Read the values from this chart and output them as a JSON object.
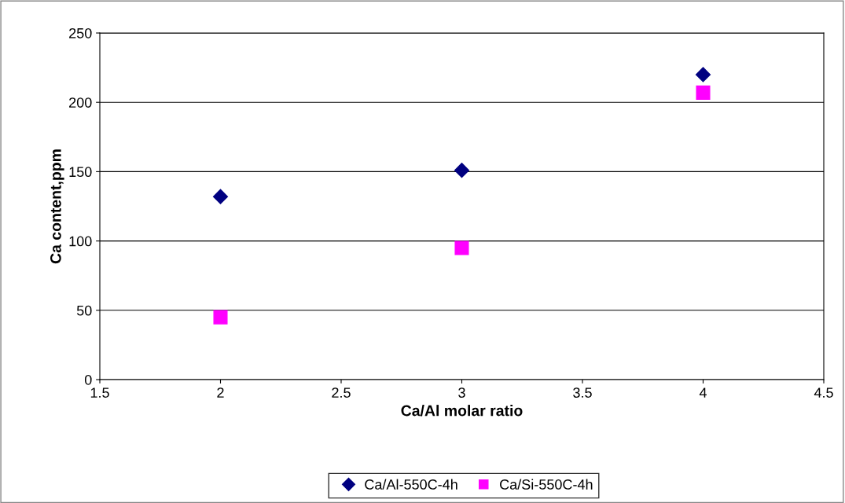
{
  "chart_data": {
    "type": "scatter",
    "xlabel": "Ca/Al molar ratio",
    "ylabel": "Ca content,ppm",
    "x": [
      2,
      3,
      4
    ],
    "series": [
      {
        "name": "Ca/Al-550C-4h",
        "color": "#000080",
        "marker": "diamond",
        "values": [
          132,
          151,
          220
        ]
      },
      {
        "name": "Ca/Si-550C-4h",
        "color": "#ff00ff",
        "marker": "square",
        "values": [
          45,
          95,
          207
        ]
      }
    ],
    "xlim": [
      1.5,
      4.5
    ],
    "xticks": [
      1.5,
      2,
      2.5,
      3,
      3.5,
      4,
      4.5
    ],
    "ylim": [
      0,
      250
    ],
    "yticks": [
      0,
      50,
      100,
      150,
      200,
      250
    ],
    "grid": "y",
    "legend": "bottom"
  }
}
